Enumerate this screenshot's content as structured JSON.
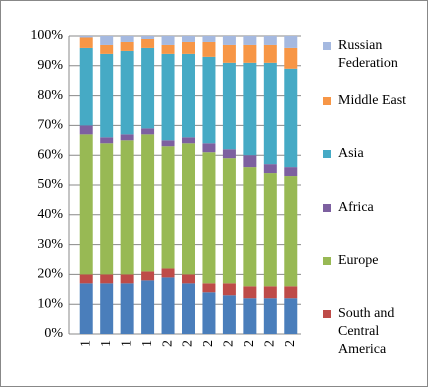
{
  "chart_data": {
    "type": "stacked_bar_100",
    "categories": [
      "1",
      "1",
      "1",
      "1",
      "2",
      "2",
      "2",
      "2",
      "2",
      "2",
      "2"
    ],
    "series": [
      {
        "color": "#4a7ebb",
        "values": [
          17,
          17,
          17,
          18,
          19,
          17,
          14,
          13,
          12,
          12,
          12
        ]
      },
      {
        "name": "South and Central America",
        "color": "#be4b48",
        "values": [
          3,
          3,
          3,
          3,
          3,
          3,
          3,
          4,
          4,
          4,
          4
        ]
      },
      {
        "name": "Europe",
        "color": "#98b954",
        "values": [
          47,
          44,
          45,
          46,
          41,
          44,
          44,
          42,
          40,
          38,
          37
        ]
      },
      {
        "name": "Africa",
        "color": "#7d60a0",
        "values": [
          3,
          2,
          2,
          2,
          2,
          2,
          3,
          3,
          4,
          3,
          3
        ]
      },
      {
        "name": "Asia",
        "color": "#46aac5",
        "values": [
          26,
          28,
          28,
          27,
          29,
          28,
          29,
          29,
          31,
          34,
          33
        ]
      },
      {
        "name": "Middle East",
        "color": "#f79646",
        "values": [
          3.5,
          3,
          3,
          3,
          3,
          4,
          5,
          6,
          6,
          6,
          7
        ]
      },
      {
        "name": "Russian Federation",
        "color": "#a5b9e0",
        "values": [
          0.5,
          3,
          2,
          1,
          3,
          2,
          2,
          3,
          3,
          3,
          4
        ]
      }
    ],
    "ylim": [
      0,
      100
    ],
    "yticks": [
      {
        "value": 0,
        "label": "0%"
      },
      {
        "value": 10,
        "label": "10%"
      },
      {
        "value": 20,
        "label": "20%"
      },
      {
        "value": 30,
        "label": "30%"
      },
      {
        "value": 40,
        "label": "40%"
      },
      {
        "value": 50,
        "label": "50%"
      },
      {
        "value": 60,
        "label": "60%"
      },
      {
        "value": 70,
        "label": "70%"
      },
      {
        "value": 80,
        "label": "80%"
      },
      {
        "value": 90,
        "label": "90%"
      },
      {
        "value": 100,
        "label": "100%"
      }
    ],
    "grid": true
  }
}
